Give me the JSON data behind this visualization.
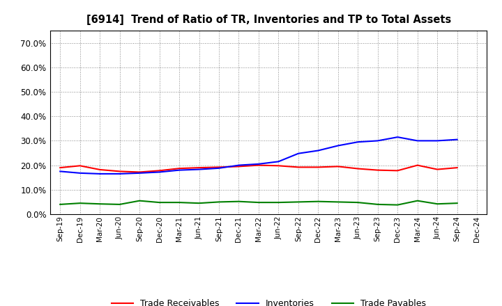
{
  "title": "[6914]  Trend of Ratio of TR, Inventories and TP to Total Assets",
  "x_labels": [
    "Sep-19",
    "Dec-19",
    "Mar-20",
    "Jun-20",
    "Sep-20",
    "Dec-20",
    "Mar-21",
    "Jun-21",
    "Sep-21",
    "Dec-21",
    "Mar-22",
    "Jun-22",
    "Sep-22",
    "Dec-22",
    "Mar-23",
    "Jun-23",
    "Sep-23",
    "Dec-23",
    "Mar-24",
    "Jun-24",
    "Sep-24",
    "Dec-24"
  ],
  "trade_receivables": [
    0.19,
    0.198,
    0.182,
    0.175,
    0.172,
    0.178,
    0.187,
    0.19,
    0.192,
    0.195,
    0.2,
    0.198,
    0.192,
    0.192,
    0.195,
    0.186,
    0.18,
    0.178,
    0.2,
    0.183,
    0.19,
    null
  ],
  "inventories": [
    0.175,
    0.168,
    0.165,
    0.165,
    0.168,
    0.172,
    0.18,
    0.183,
    0.188,
    0.2,
    0.205,
    0.215,
    0.248,
    0.26,
    0.28,
    0.295,
    0.3,
    0.315,
    0.3,
    0.3,
    0.305,
    null
  ],
  "trade_payables": [
    0.04,
    0.045,
    0.042,
    0.04,
    0.055,
    0.048,
    0.048,
    0.045,
    0.05,
    0.052,
    0.048,
    0.048,
    0.05,
    0.052,
    0.05,
    0.048,
    0.04,
    0.038,
    0.055,
    0.042,
    0.045,
    null
  ],
  "tr_color": "#ff0000",
  "inv_color": "#0000ff",
  "tp_color": "#008000",
  "ylim": [
    0.0,
    0.75
  ],
  "yticks": [
    0.0,
    0.1,
    0.2,
    0.3,
    0.4,
    0.5,
    0.6,
    0.7
  ],
  "background_color": "#ffffff",
  "grid_color": "#888888",
  "legend_labels": [
    "Trade Receivables",
    "Inventories",
    "Trade Payables"
  ]
}
